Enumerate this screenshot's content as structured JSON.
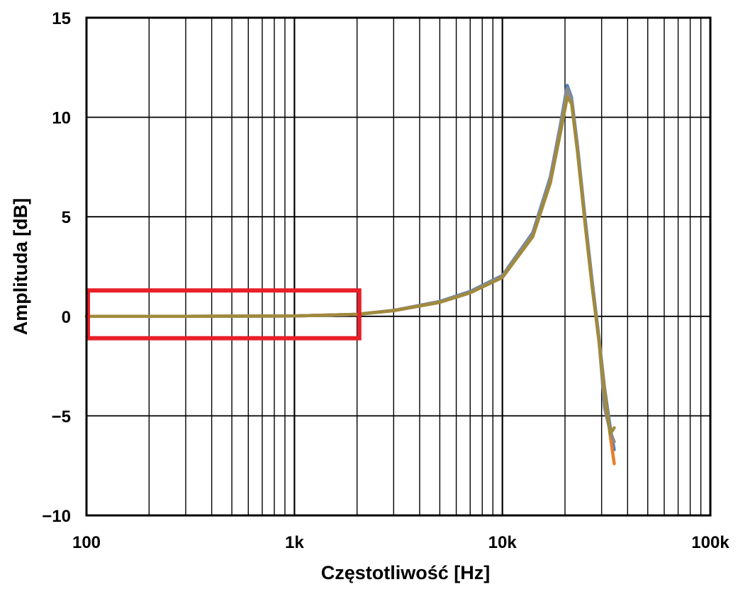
{
  "chart_data": {
    "type": "line",
    "xlabel": "Częstotliwość [Hz]",
    "ylabel": "Amplituda [dB]",
    "x_scale": "log",
    "xlim": [
      100,
      100000
    ],
    "ylim": [
      -10,
      15
    ],
    "grid": true,
    "x_ticks": [
      {
        "value": 100,
        "label": "100"
      },
      {
        "value": 1000,
        "label": "1k"
      },
      {
        "value": 10000,
        "label": "10k"
      },
      {
        "value": 100000,
        "label": "100k"
      }
    ],
    "y_ticks": [
      {
        "value": 15,
        "label": "15"
      },
      {
        "value": 10,
        "label": "10"
      },
      {
        "value": 5,
        "label": "5"
      },
      {
        "value": 0,
        "label": "0"
      },
      {
        "value": -5,
        "label": "−5"
      },
      {
        "value": -10,
        "label": "−10"
      }
    ],
    "series": [
      {
        "color": "#4f7ec4",
        "x": [
          100,
          300,
          1000,
          2000,
          3000,
          5000,
          7000,
          10000,
          14000,
          17000,
          19000,
          20500,
          21500,
          23000,
          25000,
          27000,
          29000,
          31000,
          33000,
          34500
        ],
        "y": [
          0,
          0,
          0.02,
          0.1,
          0.3,
          0.75,
          1.25,
          2.05,
          4.2,
          7.0,
          9.6,
          11.6,
          11.0,
          8.5,
          4.9,
          1.8,
          -0.9,
          -3.6,
          -5.6,
          -6.7
        ]
      },
      {
        "color": "#e87e2b",
        "x": [
          100,
          300,
          1000,
          2000,
          3000,
          5000,
          7000,
          10000,
          14000,
          17000,
          19000,
          20500,
          21500,
          23000,
          25000,
          27000,
          29000,
          31000,
          33000,
          34500
        ],
        "y": [
          0,
          0,
          0.02,
          0.1,
          0.3,
          0.72,
          1.2,
          2.0,
          4.1,
          6.8,
          9.4,
          11.3,
          10.8,
          8.3,
          4.7,
          1.6,
          -1.0,
          -3.8,
          -6.0,
          -7.4
        ]
      },
      {
        "color": "#8a8a8a",
        "x": [
          100,
          300,
          1000,
          2000,
          3000,
          5000,
          7000,
          10000,
          14000,
          17000,
          19000,
          20500,
          21500,
          23000,
          25000,
          27000,
          29000,
          31000,
          33000,
          34500
        ],
        "y": [
          0,
          0,
          0.02,
          0.1,
          0.3,
          0.74,
          1.22,
          2.02,
          4.15,
          6.9,
          9.5,
          11.45,
          10.9,
          8.4,
          4.8,
          1.7,
          -0.95,
          -4.6,
          -5.8,
          -6.3
        ]
      },
      {
        "color": "#a08a3c",
        "x": [
          100,
          300,
          1000,
          2000,
          3000,
          5000,
          7000,
          10000,
          14000,
          17000,
          19000,
          20500,
          21500,
          23000,
          25000,
          27000,
          29000,
          31000,
          33000,
          34500
        ],
        "y": [
          0,
          0,
          0.02,
          0.1,
          0.28,
          0.7,
          1.18,
          1.95,
          4.0,
          6.7,
          9.2,
          11.0,
          10.7,
          8.2,
          4.6,
          1.5,
          -1.1,
          -3.7,
          -5.9,
          -5.6
        ]
      }
    ],
    "annotations": [
      {
        "type": "rectangle",
        "color": "#e8202a",
        "x_range": [
          100,
          2050
        ],
        "y_range": [
          -1.1,
          1.3
        ]
      }
    ]
  }
}
